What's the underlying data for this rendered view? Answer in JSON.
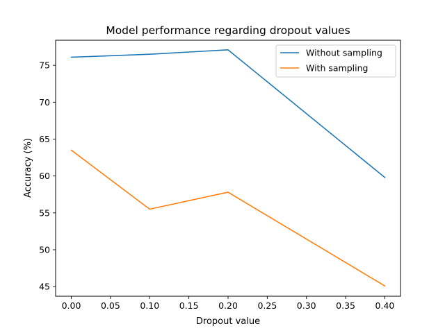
{
  "chart_data": {
    "type": "line",
    "title": "Model performance regarding dropout values",
    "xlabel": "Dropout value",
    "ylabel": "Accuracy (%)",
    "x": [
      0.0,
      0.1,
      0.2,
      0.4
    ],
    "xlim": [
      -0.02,
      0.42
    ],
    "ylim": [
      43.7,
      78.4
    ],
    "xticks": [
      0.0,
      0.05,
      0.1,
      0.15,
      0.2,
      0.25,
      0.3,
      0.35,
      0.4
    ],
    "xtick_labels": [
      "0.00",
      "0.05",
      "0.10",
      "0.15",
      "0.20",
      "0.25",
      "0.30",
      "0.35",
      "0.40"
    ],
    "yticks": [
      45,
      50,
      55,
      60,
      65,
      70,
      75
    ],
    "ytick_labels": [
      "45",
      "50",
      "55",
      "60",
      "65",
      "70",
      "75"
    ],
    "grid": false,
    "legend_position": "top-right",
    "series": [
      {
        "name": "Without sampling",
        "color": "#1f77b4",
        "values": [
          76.1,
          76.5,
          77.1,
          59.8
        ]
      },
      {
        "name": "With sampling",
        "color": "#ff7f0e",
        "values": [
          63.5,
          55.5,
          57.8,
          45.1
        ]
      }
    ]
  }
}
